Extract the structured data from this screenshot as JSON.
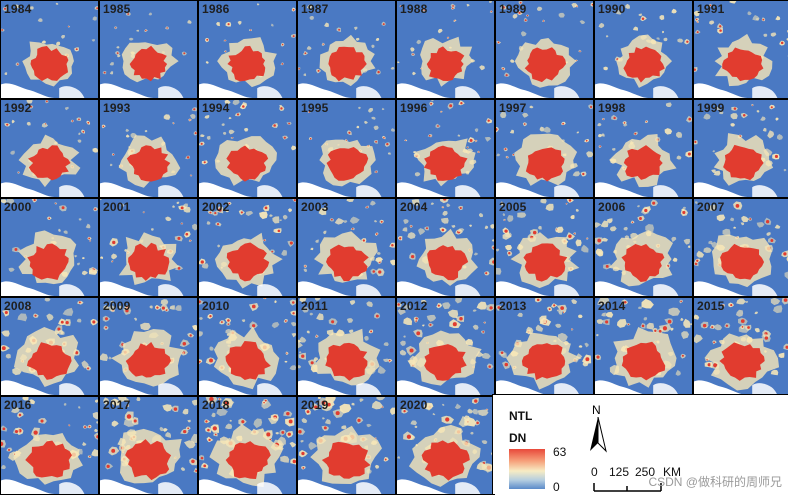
{
  "years": [
    "1984",
    "1985",
    "1986",
    "1987",
    "1988",
    "1989",
    "1990",
    "1991",
    "1992",
    "1993",
    "1994",
    "1995",
    "1996",
    "1997",
    "1998",
    "1999",
    "2000",
    "2001",
    "2002",
    "2003",
    "2004",
    "2005",
    "2006",
    "2007",
    "2008",
    "2009",
    "2010",
    "2011",
    "2012",
    "2013",
    "2014",
    "2015",
    "2016",
    "2017",
    "2018",
    "2019",
    "2020"
  ],
  "legend": {
    "title": "NTL",
    "subtitle": "DN",
    "max_label": "63",
    "min_label": "0",
    "colors": [
      "#e8493a",
      "#f6a17b",
      "#f7ecc4",
      "#b4cde0",
      "#5b8ac9"
    ]
  },
  "north_arrow": {
    "label": "N"
  },
  "scale_bar": {
    "labels": [
      "0",
      "125",
      "250"
    ],
    "unit": "KM"
  },
  "watermark": "CSDN @做科研的周师兄",
  "colors": {
    "water_background": "#4a79c3",
    "urban_core": "#e13c2f",
    "urban_fringe": "#f7e7b8",
    "coast_white": "#ffffff"
  }
}
